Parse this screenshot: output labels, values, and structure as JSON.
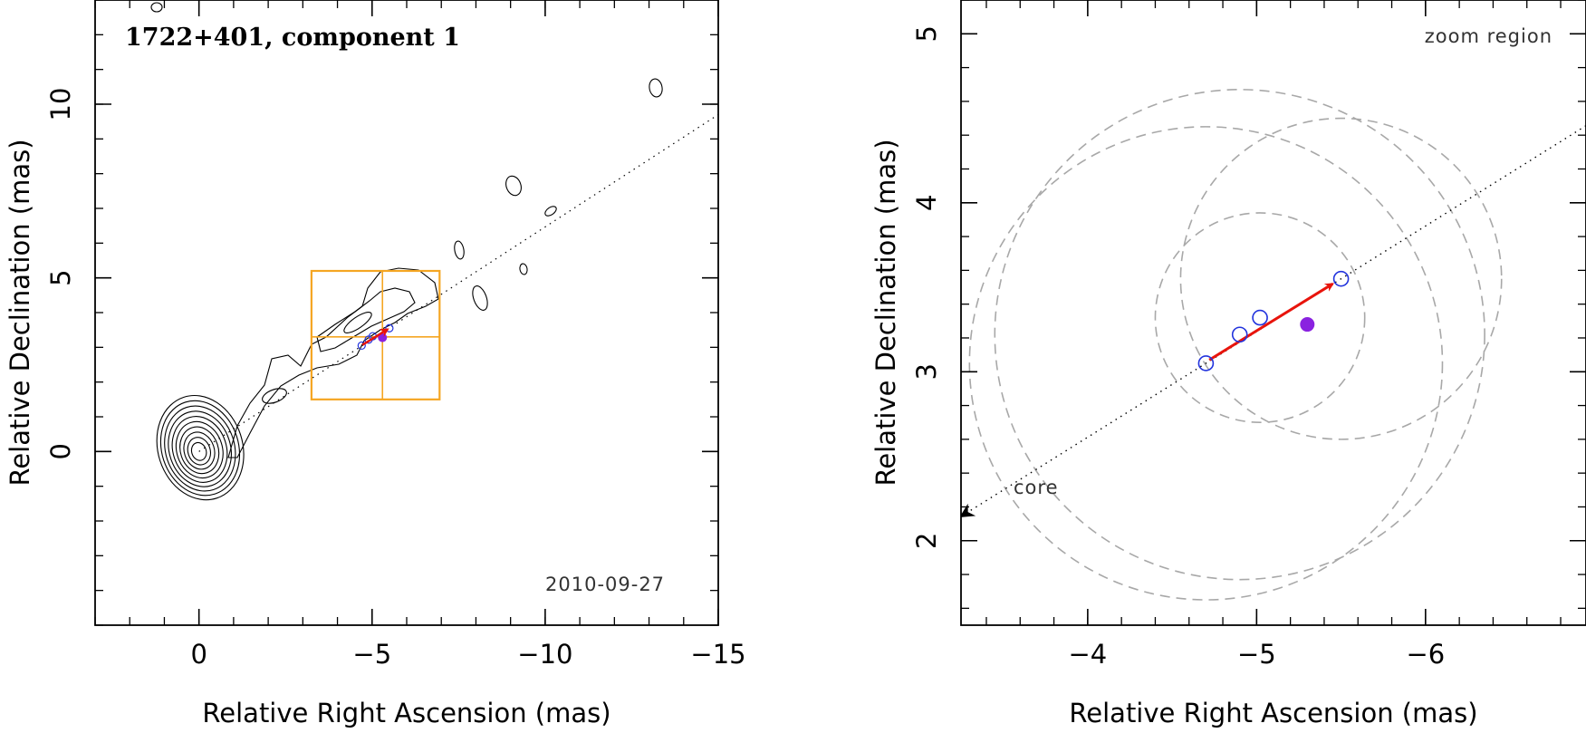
{
  "colors": {
    "box": "#f5a623",
    "arrow": "#e8140c",
    "open_marker": "#2233dd",
    "filled_marker": "#8a22e0",
    "dashed_circle": "#a8a8a8"
  },
  "chart_data": [
    {
      "type": "scatter",
      "title": "1722+401, component 1",
      "date_label": "2010-09-27",
      "xlabel": "Relative Right Ascension (mas)",
      "ylabel": "Relative Declination (mas)",
      "xlim": [
        3,
        -15
      ],
      "ylim": [
        -5,
        13
      ],
      "xticks": [
        0,
        -5,
        -10,
        -15
      ],
      "yticks": [
        0,
        5,
        10
      ],
      "xtick_labels": [
        "0",
        "−5",
        "−10",
        "−15"
      ],
      "ytick_labels": [
        "0",
        "5",
        "10"
      ],
      "jet_axis": {
        "from": [
          0,
          0
        ],
        "to": [
          -15,
          9.7
        ],
        "style": "dotted"
      },
      "core_contours": {
        "center": [
          0,
          0
        ],
        "levels": 10
      },
      "zoom_box": {
        "ra_range": [
          -3.25,
          -6.95
        ],
        "dec_range": [
          1.5,
          5.2
        ],
        "cross_ra": -5.3,
        "cross_dec": 3.3
      },
      "component_positions": [
        {
          "ra": -4.7,
          "dec": 3.05
        },
        {
          "ra": -4.9,
          "dec": 3.22
        },
        {
          "ra": -5.02,
          "dec": 3.32
        },
        {
          "ra": -5.5,
          "dec": 3.55
        }
      ],
      "mean_position": {
        "ra": -5.3,
        "dec": 3.28
      }
    },
    {
      "type": "scatter",
      "annotation": "zoom region",
      "core_label": "core",
      "xlabel": "Relative Right Ascension (mas)",
      "ylabel": "Relative Declination (mas)",
      "xlim": [
        -3.25,
        -6.95
      ],
      "ylim": [
        1.5,
        5.2
      ],
      "xticks": [
        -4,
        -5,
        -6
      ],
      "yticks": [
        2,
        3,
        4,
        5
      ],
      "xtick_labels": [
        "−4",
        "−5",
        "−6"
      ],
      "ytick_labels": [
        "2",
        "3",
        "4",
        "5"
      ],
      "component_positions": [
        {
          "ra": -4.7,
          "dec": 3.05
        },
        {
          "ra": -4.9,
          "dec": 3.22
        },
        {
          "ra": -5.02,
          "dec": 3.32
        },
        {
          "ra": -5.5,
          "dec": 3.55
        }
      ],
      "mean_position": {
        "ra": -5.3,
        "dec": 3.28
      },
      "motion_vector": {
        "from": [
          -4.72,
          3.07
        ],
        "to": [
          -5.45,
          3.52
        ]
      },
      "error_circles": [
        {
          "ra": -4.7,
          "dec": 3.05,
          "r": 1.4
        },
        {
          "ra": -4.9,
          "dec": 3.22,
          "r": 1.45
        },
        {
          "ra": -5.02,
          "dec": 3.32,
          "r": 0.62
        },
        {
          "ra": -5.5,
          "dec": 3.55,
          "r": 0.95
        }
      ]
    }
  ]
}
